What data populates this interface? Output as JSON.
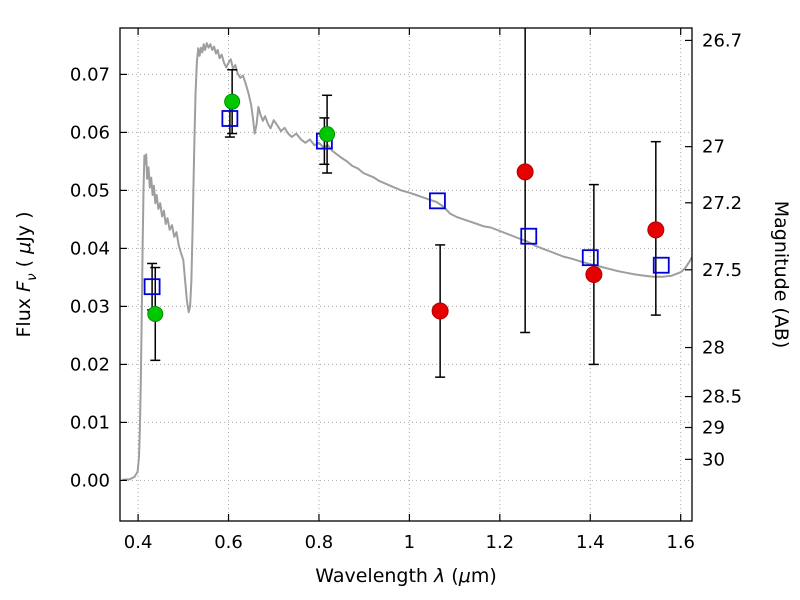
{
  "chart_data": {
    "type": "scatter",
    "title": "",
    "xlabel": "Wavelength λ (μm)",
    "ylabel_left": "Flux Fν ( μJy )",
    "ylabel_right": "Magnitude (AB)",
    "xlabel_parts": [
      {
        "t": "Wavelength  ",
        "i": false
      },
      {
        "t": "λ",
        "i": true
      },
      {
        "t": " (",
        "i": false
      },
      {
        "t": "μ",
        "i": true
      },
      {
        "t": "m)",
        "i": false
      }
    ],
    "ylabel_left_parts": [
      {
        "t": "Flux  ",
        "i": false
      },
      {
        "t": "F",
        "i": true
      },
      {
        "t": "ν",
        "i": true,
        "sub": true
      },
      {
        "t": "  ( ",
        "i": false
      },
      {
        "t": "μ",
        "i": true
      },
      {
        "t": "Jy )",
        "i": false
      }
    ],
    "xlim": [
      0.36,
      1.625
    ],
    "ylim": [
      -0.007,
      0.078
    ],
    "grid": true,
    "legend": "none",
    "mag_zeropoint": 23.9,
    "x_ticks": [
      0.4,
      0.6,
      0.8,
      1.0,
      1.2,
      1.4,
      1.6
    ],
    "x_tick_labels": [
      "0.4",
      "0.6",
      "0.8",
      "1",
      "1.2",
      "1.4",
      "1.6"
    ],
    "y_ticks_left": [
      0.0,
      0.01,
      0.02,
      0.03,
      0.04,
      0.05,
      0.06,
      0.07
    ],
    "y_tick_labels_left": [
      "0.00",
      "0.01",
      "0.02",
      "0.03",
      "0.04",
      "0.05",
      "0.06",
      "0.07"
    ],
    "y_ticks_right_mag": [
      26.7,
      27.0,
      27.2,
      27.5,
      28.0,
      28.5,
      29.0,
      30.0
    ],
    "y_tick_labels_right": [
      "26.7",
      "27",
      "27.2",
      "27.5",
      "28",
      "28.5",
      "29",
      "30"
    ],
    "colors": {
      "spectrum": "#9e9e9e",
      "grid": "#a8a8a8",
      "errorbar": "#000000",
      "green_marker": "#00c800",
      "green_edge": "#009100",
      "red_marker": "#e60000",
      "red_edge": "#b00000",
      "blue_marker": "#0000d9",
      "axis": "#000000"
    },
    "spectrum": {
      "name": "model-spectrum",
      "color": "#9e9e9e",
      "points": [
        [
          0.365,
          0.0001
        ],
        [
          0.382,
          0.0002
        ],
        [
          0.392,
          0.0006
        ],
        [
          0.399,
          0.0015
        ],
        [
          0.402,
          0.004
        ],
        [
          0.404,
          0.009
        ],
        [
          0.406,
          0.017
        ],
        [
          0.408,
          0.028
        ],
        [
          0.41,
          0.04
        ],
        [
          0.412,
          0.05
        ],
        [
          0.414,
          0.056
        ],
        [
          0.416,
          0.0545
        ],
        [
          0.418,
          0.0562
        ],
        [
          0.42,
          0.052
        ],
        [
          0.423,
          0.054
        ],
        [
          0.426,
          0.0505
        ],
        [
          0.429,
          0.0522
        ],
        [
          0.432,
          0.0492
        ],
        [
          0.435,
          0.0508
        ],
        [
          0.438,
          0.0478
        ],
        [
          0.441,
          0.0492
        ],
        [
          0.445,
          0.0468
        ],
        [
          0.449,
          0.0478
        ],
        [
          0.453,
          0.0455
        ],
        [
          0.457,
          0.0465
        ],
        [
          0.461,
          0.0442
        ],
        [
          0.465,
          0.0452
        ],
        [
          0.47,
          0.0432
        ],
        [
          0.475,
          0.044
        ],
        [
          0.48,
          0.042
        ],
        [
          0.485,
          0.0428
        ],
        [
          0.49,
          0.0405
        ],
        [
          0.495,
          0.0392
        ],
        [
          0.5,
          0.038
        ],
        [
          0.504,
          0.0345
        ],
        [
          0.508,
          0.031
        ],
        [
          0.512,
          0.029
        ],
        [
          0.515,
          0.03
        ],
        [
          0.518,
          0.0345
        ],
        [
          0.521,
          0.045
        ],
        [
          0.524,
          0.057
        ],
        [
          0.527,
          0.0665
        ],
        [
          0.53,
          0.0722
        ],
        [
          0.533,
          0.0745
        ],
        [
          0.536,
          0.0732
        ],
        [
          0.539,
          0.0746
        ],
        [
          0.542,
          0.0738
        ],
        [
          0.545,
          0.0752
        ],
        [
          0.548,
          0.0742
        ],
        [
          0.552,
          0.0754
        ],
        [
          0.556,
          0.0746
        ],
        [
          0.56,
          0.0752
        ],
        [
          0.564,
          0.0742
        ],
        [
          0.568,
          0.0748
        ],
        [
          0.572,
          0.0736
        ],
        [
          0.576,
          0.0742
        ],
        [
          0.58,
          0.0728
        ],
        [
          0.585,
          0.0734
        ],
        [
          0.59,
          0.072
        ],
        [
          0.595,
          0.0712
        ],
        [
          0.6,
          0.072
        ],
        [
          0.605,
          0.0726
        ],
        [
          0.61,
          0.071
        ],
        [
          0.615,
          0.0716
        ],
        [
          0.62,
          0.0702
        ],
        [
          0.626,
          0.0694
        ],
        [
          0.632,
          0.0698
        ],
        [
          0.638,
          0.0684
        ],
        [
          0.644,
          0.0668
        ],
        [
          0.65,
          0.0648
        ],
        [
          0.654,
          0.0625
        ],
        [
          0.658,
          0.0598
        ],
        [
          0.662,
          0.0614
        ],
        [
          0.666,
          0.0644
        ],
        [
          0.671,
          0.063
        ],
        [
          0.676,
          0.062
        ],
        [
          0.681,
          0.0628
        ],
        [
          0.687,
          0.0615
        ],
        [
          0.693,
          0.0607
        ],
        [
          0.7,
          0.0621
        ],
        [
          0.708,
          0.0612
        ],
        [
          0.716,
          0.0602
        ],
        [
          0.724,
          0.0608
        ],
        [
          0.732,
          0.0598
        ],
        [
          0.74,
          0.0592
        ],
        [
          0.75,
          0.0598
        ],
        [
          0.76,
          0.0588
        ],
        [
          0.77,
          0.0582
        ],
        [
          0.78,
          0.0588
        ],
        [
          0.79,
          0.0578
        ],
        [
          0.8,
          0.0582
        ],
        [
          0.81,
          0.0574
        ],
        [
          0.82,
          0.0578
        ],
        [
          0.83,
          0.0568
        ],
        [
          0.84,
          0.0562
        ],
        [
          0.85,
          0.0556
        ],
        [
          0.862,
          0.055
        ],
        [
          0.874,
          0.0542
        ],
        [
          0.886,
          0.0538
        ],
        [
          0.898,
          0.053
        ],
        [
          0.91,
          0.0526
        ],
        [
          0.922,
          0.0522
        ],
        [
          0.934,
          0.0516
        ],
        [
          0.946,
          0.0512
        ],
        [
          0.958,
          0.0508
        ],
        [
          0.97,
          0.0504
        ],
        [
          0.982,
          0.05
        ],
        [
          1.0,
          0.0496
        ],
        [
          1.015,
          0.0492
        ],
        [
          1.03,
          0.0488
        ],
        [
          1.045,
          0.0484
        ],
        [
          1.06,
          0.048
        ],
        [
          1.075,
          0.0472
        ],
        [
          1.09,
          0.046
        ],
        [
          1.105,
          0.0454
        ],
        [
          1.12,
          0.045
        ],
        [
          1.135,
          0.0446
        ],
        [
          1.15,
          0.0442
        ],
        [
          1.165,
          0.0438
        ],
        [
          1.18,
          0.0436
        ],
        [
          1.2,
          0.043
        ],
        [
          1.22,
          0.0424
        ],
        [
          1.24,
          0.0418
        ],
        [
          1.26,
          0.0412
        ],
        [
          1.28,
          0.0404
        ],
        [
          1.3,
          0.0398
        ],
        [
          1.32,
          0.0392
        ],
        [
          1.34,
          0.0386
        ],
        [
          1.36,
          0.0382
        ],
        [
          1.38,
          0.0377
        ],
        [
          1.4,
          0.0373
        ],
        [
          1.42,
          0.0369
        ],
        [
          1.44,
          0.0365
        ],
        [
          1.46,
          0.0361
        ],
        [
          1.48,
          0.0358
        ],
        [
          1.5,
          0.0355
        ],
        [
          1.52,
          0.0353
        ],
        [
          1.54,
          0.0351
        ],
        [
          1.56,
          0.0351
        ],
        [
          1.58,
          0.0353
        ],
        [
          1.6,
          0.0359
        ],
        [
          1.61,
          0.0366
        ],
        [
          1.62,
          0.0378
        ],
        [
          1.625,
          0.0385
        ]
      ]
    },
    "series": [
      {
        "name": "blue-open-squares",
        "marker": "square",
        "color": "#0000d9",
        "points": [
          {
            "x": 0.431,
            "y": 0.0334,
            "elo": 0.004,
            "ehi": 0.004
          },
          {
            "x": 0.603,
            "y": 0.0624,
            "elo": 0.0032,
            "ehi": 0.0032
          },
          {
            "x": 0.812,
            "y": 0.0585,
            "elo": 0.004,
            "ehi": 0.004
          },
          {
            "x": 1.062,
            "y": 0.0482,
            "elo": 0,
            "ehi": 0
          },
          {
            "x": 1.264,
            "y": 0.0421,
            "elo": 0,
            "ehi": 0
          },
          {
            "x": 1.4,
            "y": 0.0384,
            "elo": 0,
            "ehi": 0
          },
          {
            "x": 1.557,
            "y": 0.0371,
            "elo": 0,
            "ehi": 0
          }
        ]
      },
      {
        "name": "green-filled-circles",
        "marker": "circle",
        "color": "#00c800",
        "edge": "#009100",
        "marker_size": 7.5,
        "points": [
          {
            "x": 0.438,
            "y": 0.0287,
            "elo": 0.008,
            "ehi": 0.008
          },
          {
            "x": 0.608,
            "y": 0.0653,
            "elo": 0.0055,
            "ehi": 0.0055
          },
          {
            "x": 0.818,
            "y": 0.0597,
            "elo": 0.0067,
            "ehi": 0.0067
          }
        ]
      },
      {
        "name": "red-filled-circles",
        "marker": "circle",
        "color": "#e60000",
        "edge": "#b00000",
        "marker_size": 8,
        "points": [
          {
            "x": 1.068,
            "y": 0.0292,
            "elo": 0.0114,
            "ehi": 0.0114
          },
          {
            "x": 1.256,
            "y": 0.0532,
            "elo": 0.0277,
            "ehi": 0.033
          },
          {
            "x": 1.408,
            "y": 0.0355,
            "elo": 0.0155,
            "ehi": 0.0155
          },
          {
            "x": 1.545,
            "y": 0.0432,
            "elo": 0.0147,
            "ehi": 0.0152
          }
        ]
      }
    ]
  }
}
